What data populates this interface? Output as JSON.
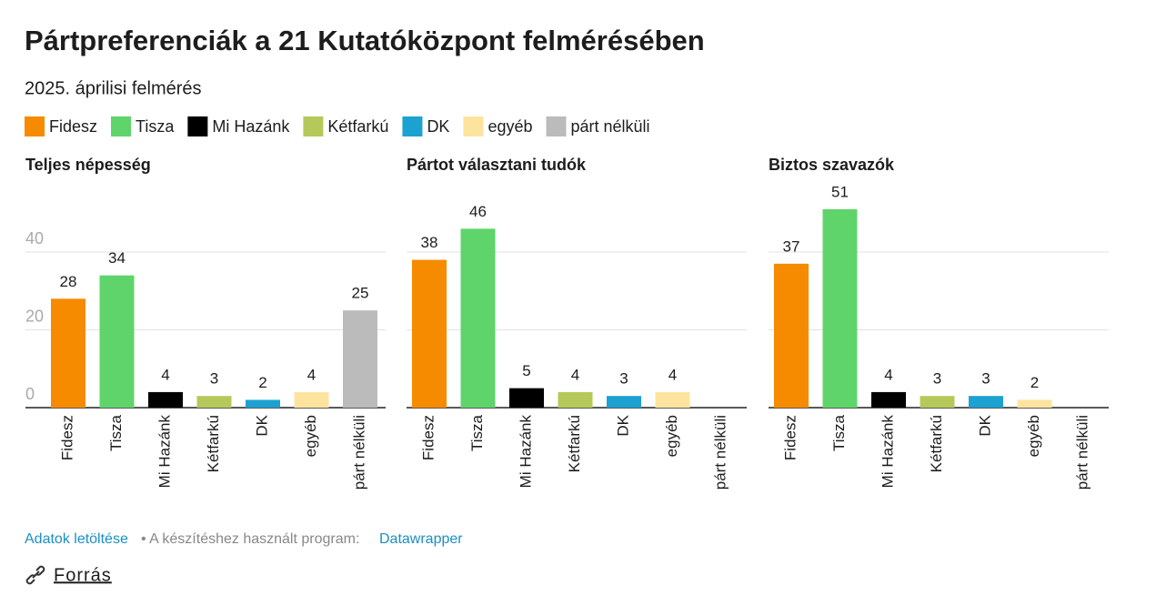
{
  "title": "Pártpreferenciák a 21 Kutatóközpont felmérésében",
  "subtitle": "2025. áprilisi felmérés",
  "chart_data": [
    {
      "type": "bar",
      "title": "Teljes népesség",
      "categories": [
        "Fidesz",
        "Tisza",
        "Mi Hazánk",
        "Kétfarkú",
        "DK",
        "egyéb",
        "párt nélküli"
      ],
      "values": [
        28,
        34,
        4,
        3,
        2,
        4,
        25
      ],
      "colors": [
        "#f68b00",
        "#5fd46b",
        "#000000",
        "#b5c95a",
        "#1da1d0",
        "#fde49e",
        "#bbbbbb"
      ],
      "ylim": [
        0,
        51
      ],
      "yticks": [
        0,
        20,
        40
      ],
      "grid": true,
      "show_yticks": true
    },
    {
      "type": "bar",
      "title": "Pártot választani tudók",
      "categories": [
        "Fidesz",
        "Tisza",
        "Mi Hazánk",
        "Kétfarkú",
        "DK",
        "egyéb",
        "párt nélküli"
      ],
      "values": [
        38,
        46,
        5,
        4,
        3,
        4,
        null
      ],
      "colors": [
        "#f68b00",
        "#5fd46b",
        "#000000",
        "#b5c95a",
        "#1da1d0",
        "#fde49e",
        "#bbbbbb"
      ],
      "ylim": [
        0,
        51
      ],
      "yticks": [
        0,
        20,
        40
      ],
      "grid": true,
      "show_yticks": false
    },
    {
      "type": "bar",
      "title": "Biztos szavazók",
      "categories": [
        "Fidesz",
        "Tisza",
        "Mi Hazánk",
        "Kétfarkú",
        "DK",
        "egyéb",
        "párt nélküli"
      ],
      "values": [
        37,
        51,
        4,
        3,
        3,
        2,
        null
      ],
      "colors": [
        "#f68b00",
        "#5fd46b",
        "#000000",
        "#b5c95a",
        "#1da1d0",
        "#fde49e",
        "#bbbbbb"
      ],
      "ylim": [
        0,
        51
      ],
      "yticks": [
        0,
        20,
        40
      ],
      "grid": true,
      "show_yticks": false
    }
  ],
  "footer": {
    "download": "Adatok letöltése",
    "made_with": "• A készítéshez használt program:",
    "tool": "Datawrapper",
    "source": "Forrás"
  }
}
